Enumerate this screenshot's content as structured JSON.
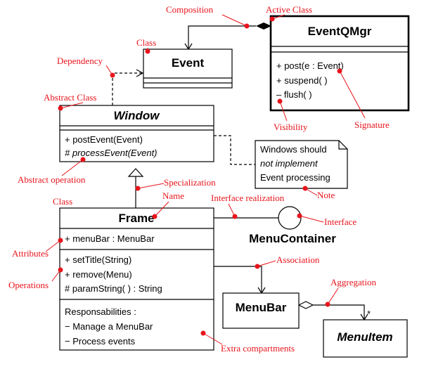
{
  "classes": {
    "eventqmgr": {
      "name": "EventQMgr",
      "ops": [
        "+ post(e : Event)",
        "+ suspend( )",
        "– flush( )"
      ]
    },
    "event": {
      "name": "Event"
    },
    "window": {
      "name": "Window",
      "ops": [
        "+ postEvent(Event)",
        "# processEvent(Event)"
      ]
    },
    "frame": {
      "name": "Frame",
      "attrs": [
        "+ menuBar : MenuBar"
      ],
      "ops": [
        "+ setTitle(String)",
        "+ remove(Menu)",
        "# paramString( ) : String"
      ],
      "extra": [
        "Responsabilities :",
        "− Manage a MenuBar",
        "− Process events"
      ]
    },
    "menubar": {
      "name": "MenuBar"
    },
    "menuitem": {
      "name": "MenuItem"
    }
  },
  "interface": {
    "name": "MenuContainer"
  },
  "note": {
    "lines": [
      "Windows should",
      "not implement",
      "Event processing"
    ]
  },
  "multiplicity": "*",
  "labels": {
    "composition": "Composition",
    "active_class": "Active Class",
    "class_top": "Class",
    "dependency": "Dependency",
    "abstract_class": "Abstract Class",
    "abstract_operation": "Abstract operation",
    "visibility": "Visibility",
    "signature": "Signature",
    "note": "Note",
    "specialization": "Specialization",
    "name": "Name",
    "class_left": "Class",
    "interface_realization": "Interface realization",
    "interface": "Interface",
    "attributes": "Attributes",
    "operations": "Operations",
    "association": "Association",
    "aggregation": "Aggregation",
    "extra_compartments": "Extra compartments"
  },
  "colors": {
    "annotation": "#e8141c",
    "line": "#000000"
  }
}
